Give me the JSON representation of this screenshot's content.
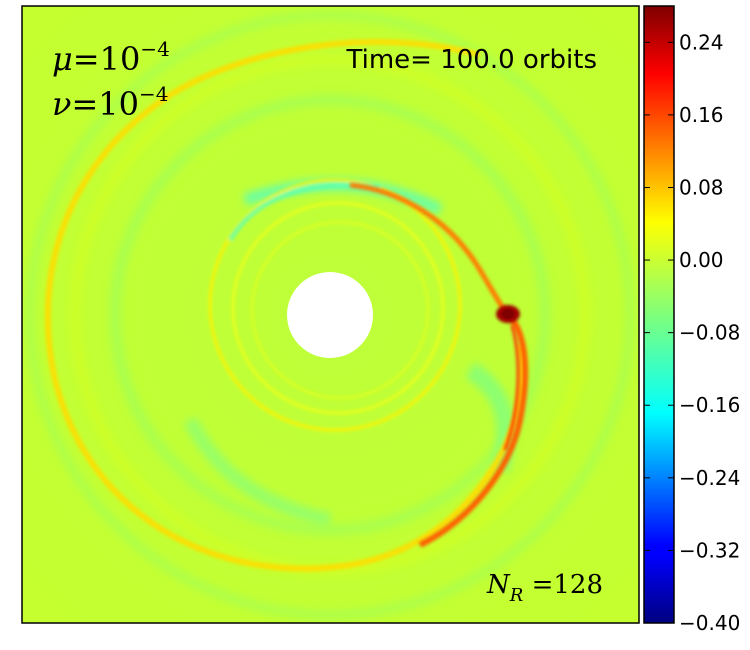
{
  "chart_data": {
    "type": "heatmap",
    "title": "",
    "annotations": {
      "time_label": "Time= 100.0 orbits",
      "mu_label": "μ",
      "mu_eq": "=10",
      "mu_exp": "−4",
      "nu_label": "ν",
      "nu_eq": "=10",
      "nu_exp": "−4",
      "nr_label": "N",
      "nr_sub": "R",
      "nr_eq": " =128"
    },
    "colorbar": {
      "range": [
        -0.4,
        0.28
      ],
      "colormap": "jet",
      "ticks": [
        -0.4,
        -0.32,
        -0.24,
        -0.16,
        -0.08,
        0.0,
        0.08,
        0.16,
        0.24
      ],
      "tick_labels": [
        "−0.40",
        "−0.32",
        "−0.24",
        "−0.16",
        "−0.08",
        "0.00",
        "0.08",
        "0.16",
        "0.24"
      ]
    },
    "field": {
      "background_value": 0.02,
      "features": [
        {
          "kind": "inner_hole",
          "value": null
        },
        {
          "kind": "planet_blob",
          "value": 0.28
        },
        {
          "kind": "outer_spiral_arm",
          "value": 0.12
        },
        {
          "kind": "inner_spiral_arm",
          "value": 0.14
        },
        {
          "kind": "inner_rings",
          "value": 0.07
        },
        {
          "kind": "gap_edge",
          "value": -0.09
        }
      ]
    },
    "axes": {
      "grid": false,
      "x_ticks": [],
      "y_ticks": []
    }
  }
}
